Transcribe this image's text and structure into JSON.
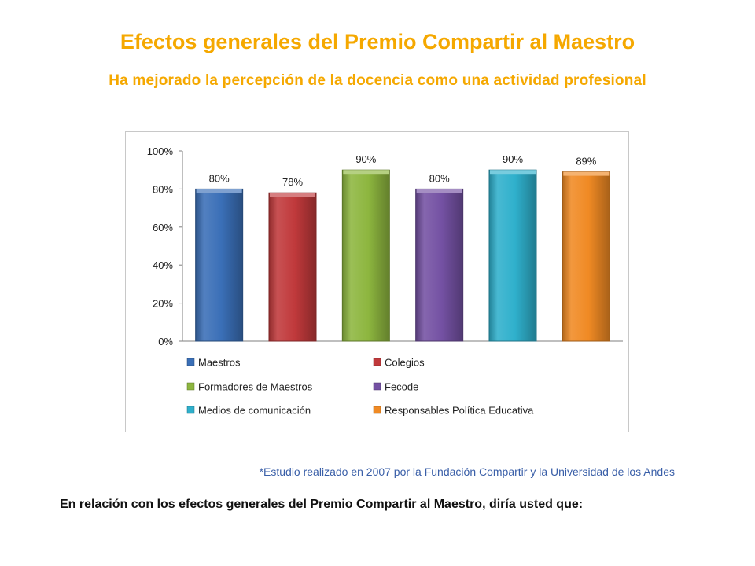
{
  "header": {
    "title": "Efectos generales del Premio Compartir al Maestro",
    "subtitle": "Ha mejorado la percepción de la docencia como una actividad profesional"
  },
  "chart_data": {
    "type": "bar",
    "categories": [
      "Maestros",
      "Colegios",
      "Formadores de Maestros",
      "Fecode",
      "Medios de comunicación",
      "Responsables Política Educativa"
    ],
    "values": [
      80,
      78,
      90,
      80,
      90,
      89
    ],
    "data_labels": [
      "80%",
      "78%",
      "90%",
      "80%",
      "90%",
      "89%"
    ],
    "colors": [
      "#3A6FB7",
      "#C0393B",
      "#8DB63F",
      "#7451A3",
      "#2FB0CC",
      "#F08A24"
    ],
    "ylim": [
      0,
      100
    ],
    "yticks": [
      "0%",
      "20%",
      "40%",
      "60%",
      "80%",
      "100%"
    ],
    "grid": false,
    "legend_position": "bottom"
  },
  "footnote": "*Estudio realizado en 2007 por la Fundación Compartir y la Universidad de los Andes",
  "question": "En relación con los efectos generales del Premio Compartir al Maestro, diría usted que:"
}
